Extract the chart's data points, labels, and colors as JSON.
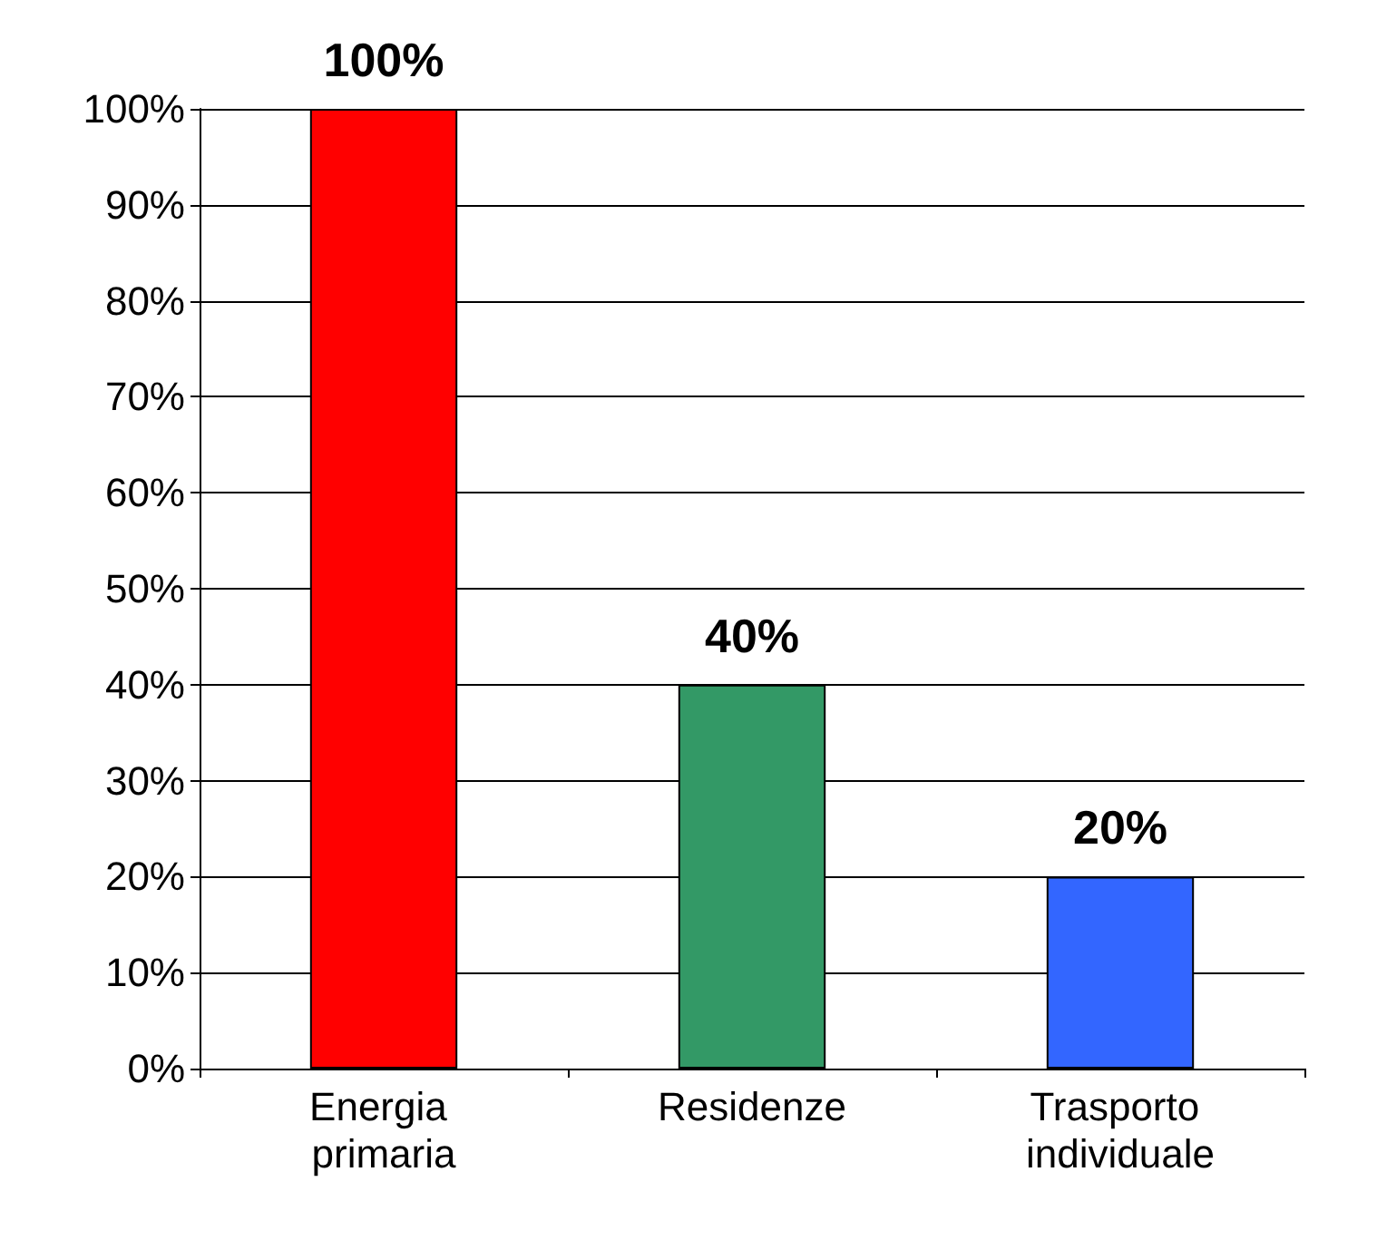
{
  "chart_data": {
    "type": "bar",
    "categories": [
      "Energia primaria",
      "Residenze",
      "Trasporto individuale"
    ],
    "values": [
      100,
      40,
      20
    ],
    "colors": [
      "#ff0000",
      "#339966",
      "#3366ff"
    ],
    "value_labels": [
      "100%",
      "40%",
      "20%"
    ],
    "ylim": [
      0,
      100
    ],
    "yticks": [
      {
        "value": 0,
        "label": "0%"
      },
      {
        "value": 10,
        "label": "10%"
      },
      {
        "value": 20,
        "label": "20%"
      },
      {
        "value": 30,
        "label": "30%"
      },
      {
        "value": 40,
        "label": "40%"
      },
      {
        "value": 50,
        "label": "50%"
      },
      {
        "value": 60,
        "label": "60%"
      },
      {
        "value": 70,
        "label": "70%"
      },
      {
        "value": 80,
        "label": "80%"
      },
      {
        "value": 90,
        "label": "90%"
      },
      {
        "value": 100,
        "label": "100%"
      }
    ],
    "grid": "y"
  }
}
